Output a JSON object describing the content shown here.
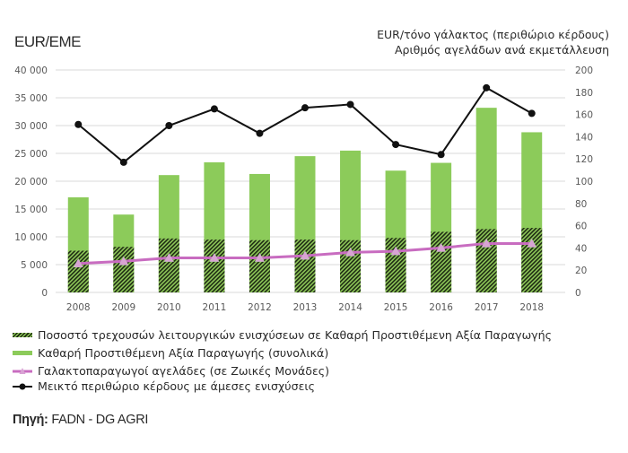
{
  "header": {
    "left_unit": "EUR/EME",
    "right_unit_line1": "EUR/τόνο γάλακτος (περιθώριο κέρδους)",
    "right_unit_line2": "Αριθμός αγελάδων ανά εκμετάλλευση"
  },
  "legend": [
    {
      "label": "Ποσοστό τρεχουσών λειτουργικών ενισχύσεων σε Καθαρή Προστιθέμενη Αξία Παραγωγής",
      "icon": "hatched-bar-swatch"
    },
    {
      "label": "Καθαρή Προστιθέμενη Αξία Παραγωγής (συνολικά)",
      "icon": "green-bar-swatch"
    },
    {
      "label": "Γαλακτοπαραγωγοί αγελάδες (σε Ζωικές Μονάδες)",
      "icon": "pink-triangle-line-swatch"
    },
    {
      "label": "Μεικτό περιθώριο κέρδους με άμεσες ενισχύσεις",
      "icon": "black-dot-line-swatch"
    }
  ],
  "source": {
    "label": "Πηγή:",
    "value": "FADN - DG AGRI"
  },
  "colors": {
    "bar_green": "#8ccb5a",
    "hatch_dark": "#1d2a12",
    "hatch_light": "#8fc95a",
    "pink_line": "#c86cc0",
    "pink_marker": "#d9a3d4",
    "black_line": "#111111",
    "grid": "#d9d9d9",
    "tick_text": "#595959"
  },
  "chart_data": {
    "type": "bar",
    "title": "",
    "xlabel": "",
    "ylabel": "EUR/EME",
    "ylabel_right": "EUR/τόνο γάλακτος (περιθώριο κέρδους) / Αριθμός αγελάδων ανά εκμετάλλευση",
    "categories": [
      "2008",
      "2009",
      "2010",
      "2011",
      "2012",
      "2013",
      "2014",
      "2015",
      "2016",
      "2017",
      "2018"
    ],
    "ylim": [
      0,
      40000
    ],
    "yticks": [
      0,
      5000,
      10000,
      15000,
      20000,
      25000,
      30000,
      35000,
      40000
    ],
    "ytick_labels": [
      "0",
      "5 000",
      "10 000",
      "15 000",
      "20 000",
      "25 000",
      "30 000",
      "35 000",
      "40 000"
    ],
    "ylim_right": [
      0,
      200
    ],
    "yticks_right": [
      0,
      20,
      40,
      60,
      80,
      100,
      120,
      140,
      160,
      180,
      200
    ],
    "ytick_labels_right": [
      "0",
      "20",
      "40",
      "60",
      "80",
      "100",
      "120",
      "140",
      "160",
      "180",
      "200"
    ],
    "grid": true,
    "legend_position": "bottom",
    "series": [
      {
        "name": "Καθαρή Προστιθέμενη Αξία Παραγωγής (συνολικά)",
        "type": "bar",
        "axis": "left",
        "values": [
          17100,
          14000,
          21100,
          23400,
          21300,
          24500,
          25500,
          21900,
          23300,
          33200,
          28800
        ]
      },
      {
        "name": "Ποσοστό τρεχουσών λειτουργικών ενισχύσεων σε Καθαρή Προστιθέμενη Αξία Παραγωγής",
        "type": "bar-hatched",
        "axis": "left",
        "values": [
          7500,
          8200,
          9700,
          9500,
          9400,
          9500,
          9400,
          9800,
          10900,
          11400,
          11600
        ]
      },
      {
        "name": "Γαλακτοπαραγωγοί αγελάδες (σε Ζωικές Μονάδες)",
        "type": "line",
        "axis": "right",
        "marker": "triangle",
        "values": [
          26,
          28,
          31,
          31,
          31,
          33,
          36,
          37,
          40,
          44,
          44
        ]
      },
      {
        "name": "Μεικτό περιθώριο κέρδους με άμεσες ενισχύσεις",
        "type": "line",
        "axis": "right",
        "marker": "circle",
        "values": [
          151,
          117,
          150,
          165,
          143,
          166,
          169,
          133,
          124,
          184,
          161
        ]
      }
    ]
  }
}
